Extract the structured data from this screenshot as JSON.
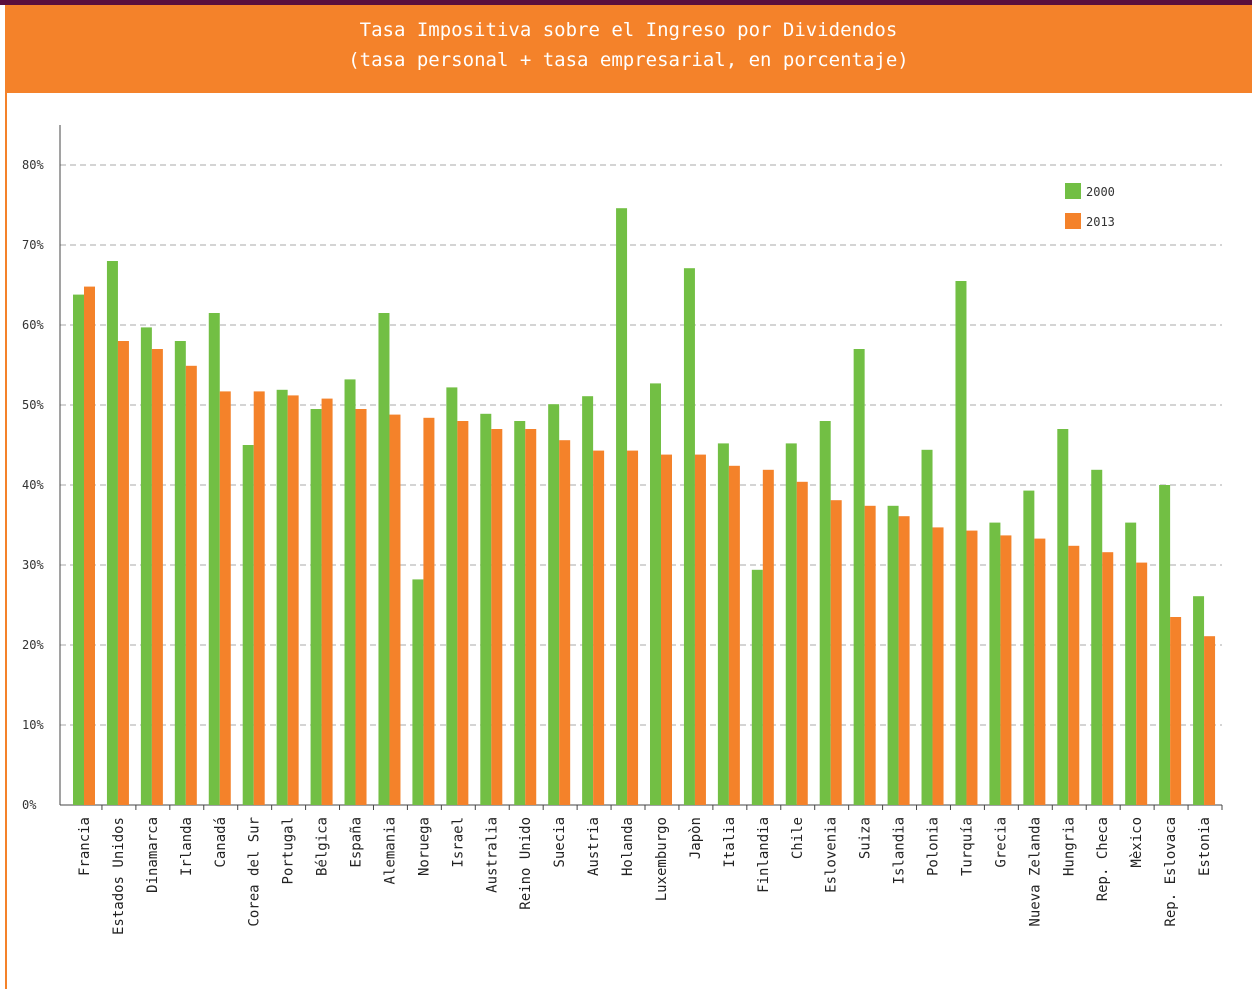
{
  "header": {
    "title_line1": "Tasa Impositiva sobre el Ingreso por Dividendos",
    "title_line2": "(tasa personal + tasa empresarial, en porcentaje)"
  },
  "colors": {
    "bar_2000": "#72bf44",
    "bar_2013": "#f4822a",
    "header": "#f4822a",
    "top_stripe": "#5a0f3d",
    "grid": "#bbbbbb"
  },
  "chart_data": {
    "type": "bar",
    "title": "Tasa Impositiva sobre el Ingreso por Dividendos",
    "subtitle": "(tasa personal + tasa empresarial, en porcentaje)",
    "ylim": [
      0,
      80
    ],
    "y_ticks": [
      "0%",
      "10%",
      "20%",
      "30%",
      "40%",
      "50%",
      "60%",
      "70%",
      "80%"
    ],
    "grid": true,
    "legend_position": "top-right",
    "categories": [
      "Francia",
      "Estados Unidos",
      "Dinamarca",
      "Irlanda",
      "Canadá",
      "Corea del Sur",
      "Portugal",
      "Bélgica",
      "España",
      "Alemania",
      "Noruega",
      "Israel",
      "Australia",
      "Reino Unido",
      "Suecia",
      "Austria",
      "Holanda",
      "Luxemburgo",
      "Japòn",
      "Italia",
      "Finlandia",
      "Chile",
      "Eslovenia",
      "Suiza",
      "Islandia",
      "Polonia",
      "Turquía",
      "Grecia",
      "Nueva Zelanda",
      "Hungria",
      "Rep. Checa",
      "Mèxico",
      "Rep. Eslovaca",
      "Estonia"
    ],
    "series": [
      {
        "name": "2000",
        "values": [
          63.8,
          68.0,
          59.7,
          58.0,
          61.5,
          45.0,
          51.9,
          49.5,
          53.2,
          61.5,
          28.2,
          52.2,
          48.9,
          48.0,
          50.1,
          51.1,
          74.6,
          52.7,
          67.1,
          45.2,
          29.4,
          45.2,
          48.0,
          57.0,
          37.4,
          44.4,
          65.5,
          35.3,
          39.3,
          47.0,
          41.9,
          35.3,
          40.0,
          26.1
        ]
      },
      {
        "name": "2013",
        "values": [
          64.8,
          58.0,
          57.0,
          54.9,
          51.7,
          51.7,
          51.2,
          50.8,
          49.5,
          48.8,
          48.4,
          48.0,
          47.0,
          47.0,
          45.6,
          44.3,
          44.3,
          43.8,
          43.8,
          42.4,
          41.9,
          40.4,
          38.1,
          37.4,
          36.1,
          34.7,
          34.3,
          33.7,
          33.3,
          32.4,
          31.6,
          30.3,
          23.5,
          21.1
        ]
      }
    ]
  }
}
